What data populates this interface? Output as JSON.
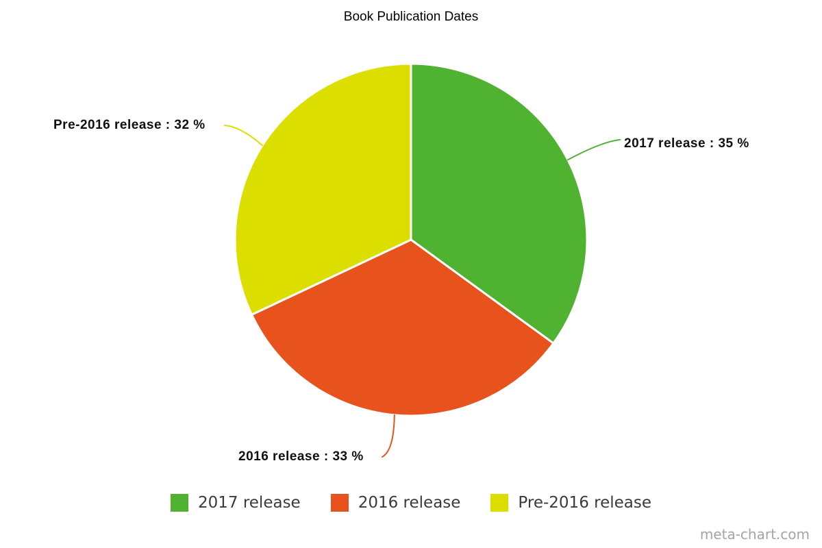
{
  "title": "Book Publication Dates",
  "chart_data": {
    "type": "pie",
    "title": "Book Publication Dates",
    "categories": [
      "2017 release",
      "2016 release",
      "Pre-2016 release"
    ],
    "values": [
      35,
      33,
      32
    ],
    "unit": "%",
    "colors": [
      "#4fb231",
      "#e8521c",
      "#dcde00"
    ],
    "start_angle_deg": 0,
    "direction": "clockwise",
    "legend_position": "bottom",
    "callouts": [
      {
        "text": "2017 release : 35 %"
      },
      {
        "text": "2016 release : 33 %"
      },
      {
        "text": "Pre-2016 release : 32 %"
      }
    ]
  },
  "legend": {
    "items": [
      {
        "label": "2017 release",
        "color": "#4fb231"
      },
      {
        "label": "2016 release",
        "color": "#e8521c"
      },
      {
        "label": "Pre-2016 release",
        "color": "#dcde00"
      }
    ]
  },
  "watermark": "meta-chart.com"
}
